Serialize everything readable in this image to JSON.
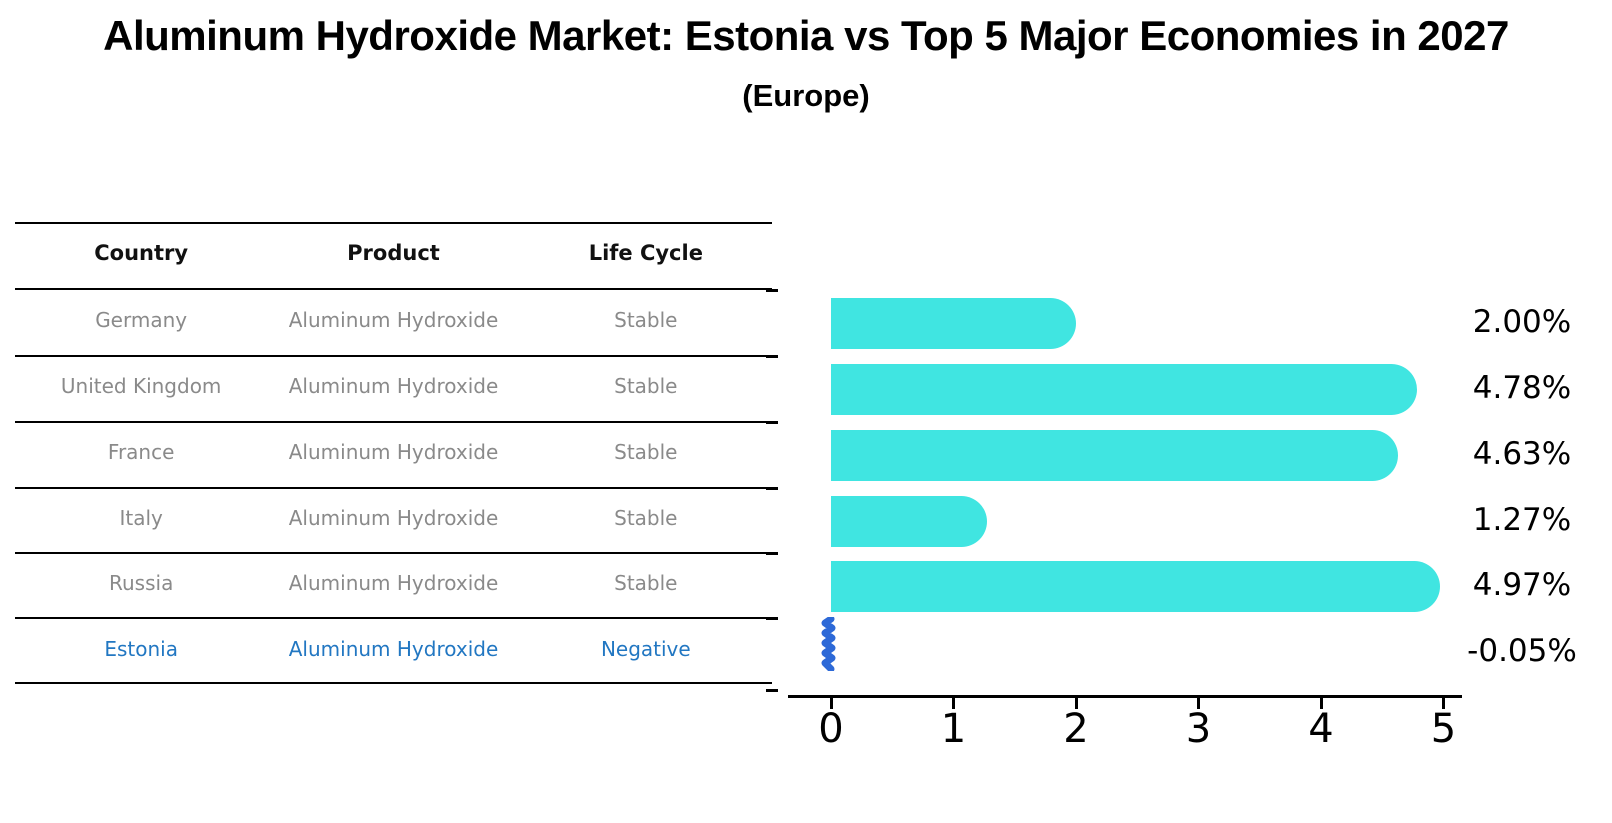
{
  "title": "Aluminum Hydroxide Market: Estonia vs Top 5 Major Economies in 2027",
  "subtitle": "(Europe)",
  "table": {
    "headers": [
      "Country",
      "Product",
      "Life Cycle"
    ],
    "rows": [
      {
        "country": "Germany",
        "product": "Aluminum Hydroxide",
        "life_cycle": "Stable",
        "highlight": false
      },
      {
        "country": "United Kingdom",
        "product": "Aluminum Hydroxide",
        "life_cycle": "Stable",
        "highlight": false
      },
      {
        "country": "France",
        "product": "Aluminum Hydroxide",
        "life_cycle": "Stable",
        "highlight": false
      },
      {
        "country": "Italy",
        "product": "Aluminum Hydroxide",
        "life_cycle": "Stable",
        "highlight": false
      },
      {
        "country": "Russia",
        "product": "Aluminum Hydroxide",
        "life_cycle": "Stable",
        "highlight": false
      },
      {
        "country": "Estonia",
        "product": "Aluminum Hydroxide",
        "life_cycle": "Negative",
        "highlight": true
      }
    ]
  },
  "chart_data": {
    "type": "bar",
    "orientation": "horizontal",
    "categories": [
      "Germany",
      "United Kingdom",
      "France",
      "Italy",
      "Russia",
      "Estonia"
    ],
    "values": [
      2.0,
      4.78,
      4.63,
      1.27,
      4.97,
      -0.05
    ],
    "value_labels": [
      "2.00%",
      "4.78%",
      "4.63%",
      "1.27%",
      "4.97%",
      "-0.05%"
    ],
    "title": "",
    "xlabel": "",
    "ylabel": "",
    "xlim": [
      0,
      5
    ],
    "x_ticks": [
      "0",
      "1",
      "2",
      "3",
      "4",
      "5"
    ],
    "grid": false,
    "legend": false,
    "bar_color": "#40E5E1",
    "highlight_marker_color": "#2D69D7",
    "highlight_text_color": "#2277C2"
  },
  "colors": {
    "bar": "#40E5E1",
    "estonia_marker": "#2D69D7",
    "estonia_text": "#2277C2",
    "table_text": "#8A8A8A",
    "header_text": "#111111",
    "line": "#000000"
  }
}
